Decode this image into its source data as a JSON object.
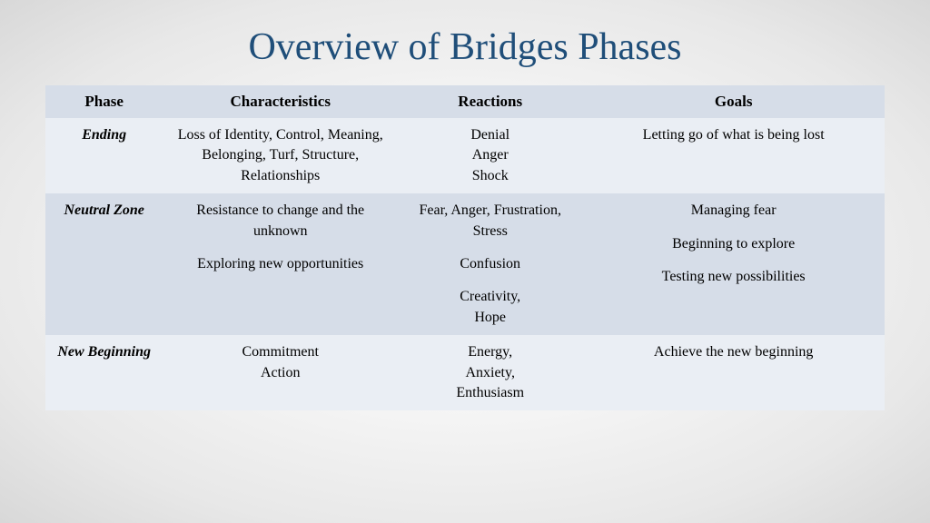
{
  "title": "Overview of Bridges Phases",
  "title_color": "#1f4e79",
  "header_bg": "#d6dde8",
  "row_odd_bg": "#eaeef4",
  "row_even_bg": "#d6dde8",
  "columns": [
    "Phase",
    "Characteristics",
    "Reactions",
    "Goals"
  ],
  "rows": [
    {
      "phase": "Ending",
      "characteristics": [
        "Loss of Identity, Control, Meaning, Belonging, Turf, Structure, Relationships"
      ],
      "reactions": [
        "Denial\nAnger\nShock"
      ],
      "goals": [
        "Letting go of what is being lost"
      ]
    },
    {
      "phase": "Neutral Zone",
      "characteristics": [
        "Resistance to change and the unknown",
        "Exploring new opportunities"
      ],
      "reactions": [
        "Fear, Anger, Frustration, Stress",
        "Confusion",
        "Creativity,\nHope"
      ],
      "goals": [
        "Managing fear",
        "Beginning to explore",
        "Testing new possibilities"
      ]
    },
    {
      "phase": "New Beginning",
      "characteristics": [
        "Commitment\nAction"
      ],
      "reactions": [
        "Energy,\nAnxiety,\nEnthusiasm"
      ],
      "goals": [
        "Achieve the new beginning"
      ]
    }
  ]
}
